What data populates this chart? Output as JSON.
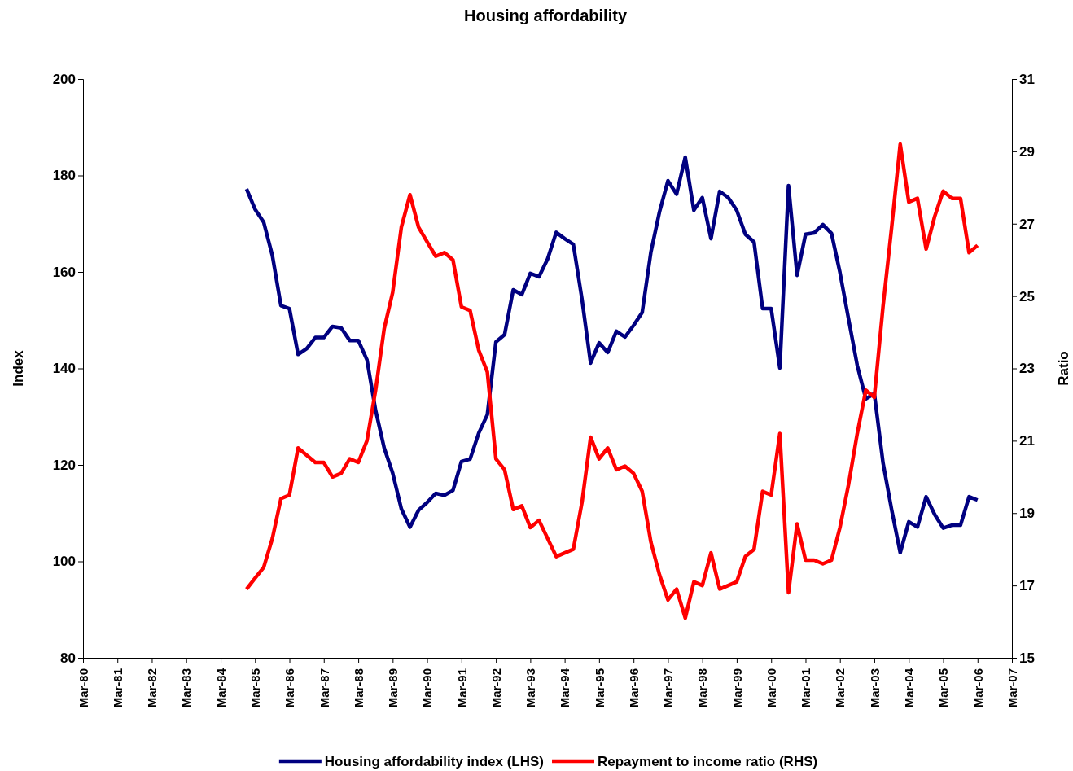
{
  "chart_data": {
    "type": "line",
    "title": "Housing affordability",
    "ylabel": "Index",
    "y2label": "Ratio",
    "x": [
      "1984-12",
      "1985-03",
      "1985-06",
      "1985-09",
      "1985-12",
      "1986-03",
      "1986-06",
      "1986-09",
      "1986-12",
      "1987-03",
      "1987-06",
      "1987-09",
      "1987-12",
      "1988-03",
      "1988-06",
      "1988-09",
      "1988-12",
      "1989-03",
      "1989-06",
      "1989-09",
      "1989-12",
      "1990-03",
      "1990-06",
      "1990-09",
      "1990-12",
      "1991-03",
      "1991-06",
      "1991-09",
      "1991-12",
      "1992-03",
      "1992-06",
      "1992-09",
      "1992-12",
      "1993-03",
      "1993-06",
      "1993-09",
      "1993-12",
      "1994-03",
      "1994-06",
      "1994-09",
      "1994-12",
      "1995-03",
      "1995-06",
      "1995-09",
      "1995-12",
      "1996-03",
      "1996-06",
      "1996-09",
      "1996-12",
      "1997-03",
      "1997-06",
      "1997-09",
      "1997-12",
      "1998-03",
      "1998-06",
      "1998-09",
      "1998-12",
      "1999-03",
      "1999-06",
      "1999-09",
      "1999-12",
      "2000-03",
      "2000-06",
      "2000-09",
      "2000-12",
      "2001-03",
      "2001-06",
      "2001-09",
      "2001-12",
      "2002-03",
      "2002-06",
      "2002-09",
      "2002-12",
      "2003-03",
      "2003-06",
      "2003-09",
      "2003-12",
      "2004-03",
      "2004-06",
      "2004-09",
      "2004-12",
      "2005-03",
      "2005-06",
      "2005-09",
      "2005-12",
      "2006-03"
    ],
    "series": [
      {
        "name": "Housing affordability index (LHS)",
        "color": "#000080",
        "axis": "y",
        "values": [
          177.2,
          173.0,
          170.3,
          163.4,
          153.0,
          152.4,
          142.9,
          144.1,
          146.4,
          146.4,
          148.7,
          148.4,
          145.8,
          145.8,
          141.8,
          131.3,
          123.5,
          118.3,
          110.9,
          107.1,
          110.6,
          112.2,
          114.1,
          113.7,
          114.7,
          120.7,
          121.2,
          126.6,
          130.4,
          145.5,
          147.0,
          156.3,
          155.3,
          159.7,
          159.0,
          162.7,
          168.2,
          166.9,
          165.7,
          154.3,
          141.1,
          145.3,
          143.3,
          147.7,
          146.5,
          148.9,
          151.6,
          164.1,
          172.4,
          178.9,
          176.1,
          183.8,
          172.8,
          175.4,
          166.9,
          176.7,
          175.4,
          172.8,
          167.8,
          166.2,
          152.4,
          152.4,
          140.1,
          177.9,
          159.3,
          167.8,
          168.1,
          169.8,
          168.0,
          159.9,
          150.2,
          140.6,
          133.7,
          134.8,
          120.5,
          110.7,
          101.8,
          108.2,
          107.1,
          113.4,
          109.7,
          106.9,
          107.5,
          107.5,
          113.4,
          112.7
        ]
      },
      {
        "name": "Repayment to income ratio (RHS)",
        "color": "#ff0000",
        "axis": "y2",
        "values": [
          16.9,
          17.2,
          17.5,
          18.3,
          19.4,
          19.5,
          20.8,
          20.6,
          20.4,
          20.4,
          20.0,
          20.1,
          20.5,
          20.4,
          21.0,
          22.4,
          24.1,
          25.1,
          26.9,
          27.8,
          26.9,
          26.5,
          26.1,
          26.2,
          26.0,
          24.7,
          24.6,
          23.5,
          22.9,
          20.5,
          20.2,
          19.1,
          19.2,
          18.6,
          18.8,
          18.3,
          17.8,
          17.9,
          18.0,
          19.3,
          21.1,
          20.5,
          20.8,
          20.2,
          20.3,
          20.1,
          19.6,
          18.2,
          17.3,
          16.6,
          16.9,
          16.1,
          17.1,
          17.0,
          17.9,
          16.9,
          17.0,
          17.1,
          17.8,
          18.0,
          19.6,
          19.5,
          21.2,
          16.8,
          18.7,
          17.7,
          17.7,
          17.6,
          17.7,
          18.6,
          19.8,
          21.2,
          22.4,
          22.2,
          24.7,
          26.9,
          29.2,
          27.6,
          27.7,
          26.3,
          27.2,
          27.9,
          27.7,
          27.7,
          26.2,
          26.4
        ]
      }
    ],
    "xlim": [
      "1980-03",
      "2007-03"
    ],
    "xticks": [
      {
        "value": "1980-03",
        "label": "Mar-80"
      },
      {
        "value": "1981-03",
        "label": "Mar-81"
      },
      {
        "value": "1982-03",
        "label": "Mar-82"
      },
      {
        "value": "1983-03",
        "label": "Mar-83"
      },
      {
        "value": "1984-03",
        "label": "Mar-84"
      },
      {
        "value": "1985-03",
        "label": "Mar-85"
      },
      {
        "value": "1986-03",
        "label": "Mar-86"
      },
      {
        "value": "1987-03",
        "label": "Mar-87"
      },
      {
        "value": "1988-03",
        "label": "Mar-88"
      },
      {
        "value": "1989-03",
        "label": "Mar-89"
      },
      {
        "value": "1990-03",
        "label": "Mar-90"
      },
      {
        "value": "1991-03",
        "label": "Mar-91"
      },
      {
        "value": "1992-03",
        "label": "Mar-92"
      },
      {
        "value": "1993-03",
        "label": "Mar-93"
      },
      {
        "value": "1994-03",
        "label": "Mar-94"
      },
      {
        "value": "1995-03",
        "label": "Mar-95"
      },
      {
        "value": "1996-03",
        "label": "Mar-96"
      },
      {
        "value": "1997-03",
        "label": "Mar-97"
      },
      {
        "value": "1998-03",
        "label": "Mar-98"
      },
      {
        "value": "1999-03",
        "label": "Mar-99"
      },
      {
        "value": "2000-03",
        "label": "Mar-00"
      },
      {
        "value": "2001-03",
        "label": "Mar-01"
      },
      {
        "value": "2002-03",
        "label": "Mar-02"
      },
      {
        "value": "2003-03",
        "label": "Mar-03"
      },
      {
        "value": "2004-03",
        "label": "Mar-04"
      },
      {
        "value": "2005-03",
        "label": "Mar-05"
      },
      {
        "value": "2006-03",
        "label": "Mar-06"
      },
      {
        "value": "2007-03",
        "label": "Mar-07"
      }
    ],
    "ylim": [
      80,
      200
    ],
    "yticks": [
      80,
      100,
      120,
      140,
      160,
      180,
      200
    ],
    "y2lim": [
      15,
      31
    ],
    "y2ticks": [
      15,
      17,
      19,
      21,
      23,
      25,
      27,
      29,
      31
    ],
    "grid": false,
    "legend": "bottom",
    "marker": "none",
    "line_style": "solid"
  }
}
